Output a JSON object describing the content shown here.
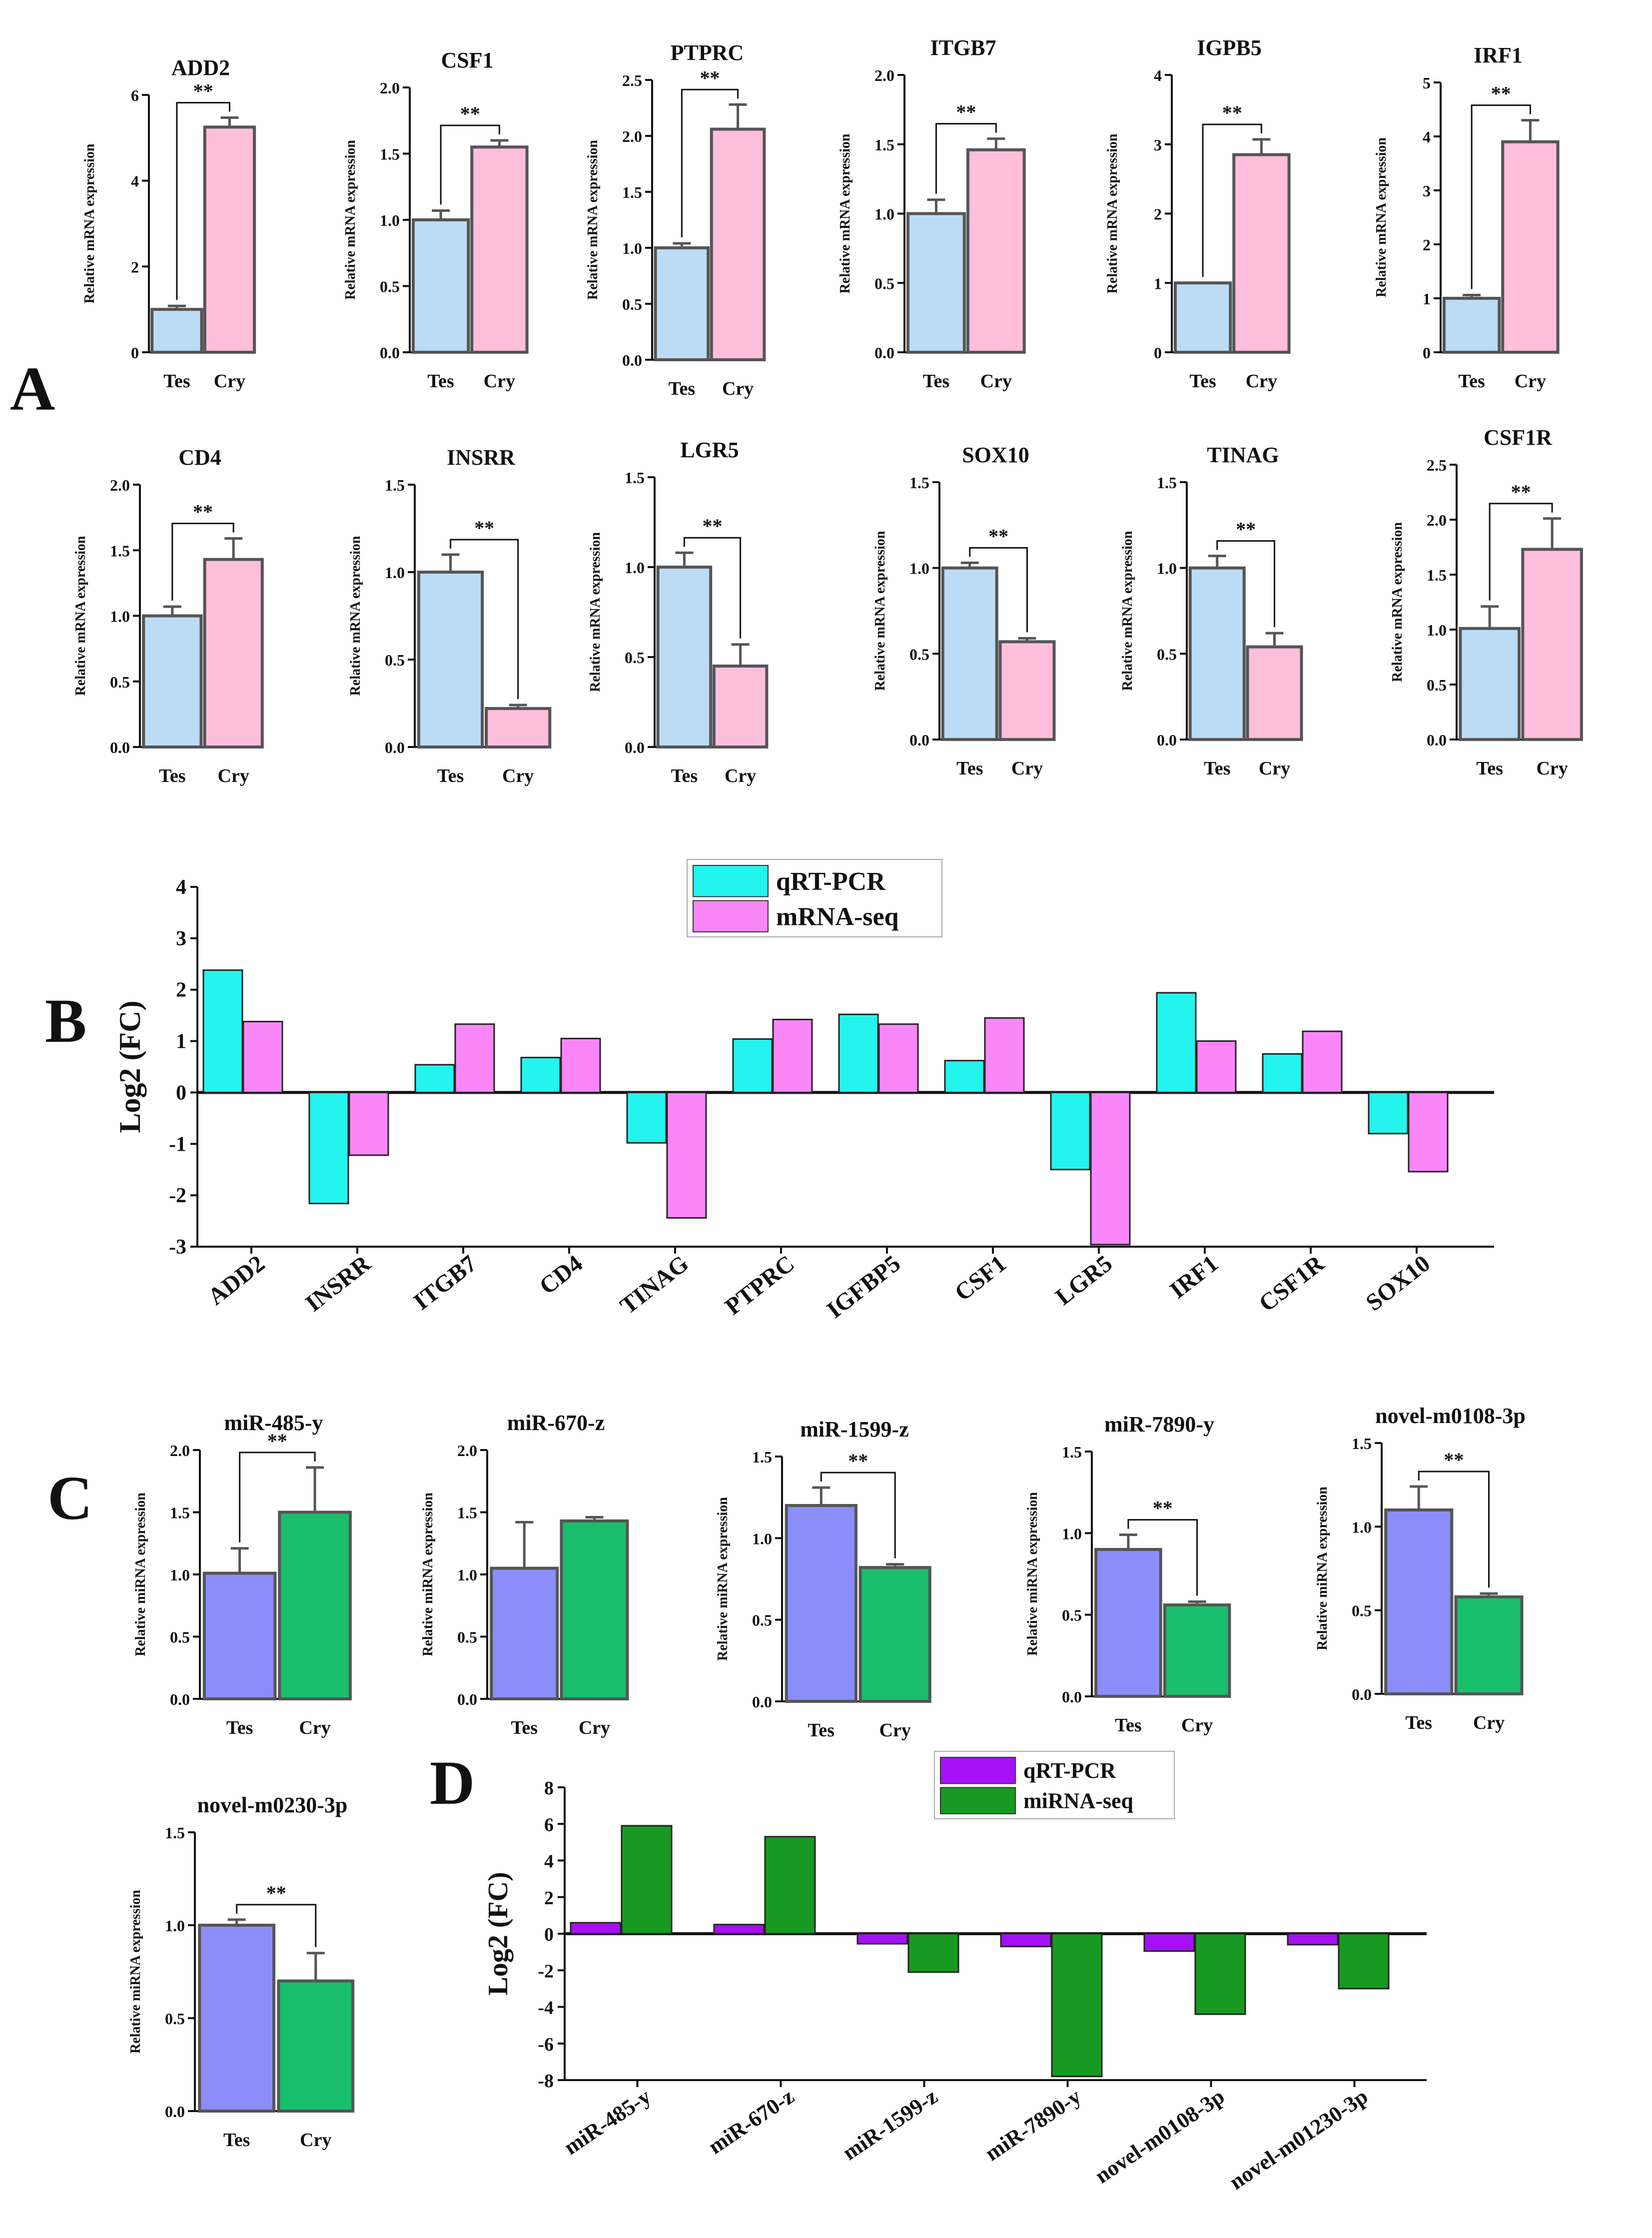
{
  "figure": {
    "panel_labels": [
      "A",
      "B",
      "C",
      "D"
    ],
    "sig_marker": "**"
  },
  "colors": {
    "tes_mrna": "#bcdcf6",
    "cry_mrna": "#ffbedc",
    "tes_mirna": "#8b8efa",
    "cry_mirna": "#19bf6c",
    "b_qrt": "#24f4ee",
    "b_seq": "#fa87fa",
    "d_qrt": "#a610f6",
    "d_seq": "#179a21",
    "bar_border": "#555555",
    "axis": "#111111"
  },
  "chart_data": [
    {
      "type": "bar",
      "panel": "A",
      "title": "ADD2",
      "ylabel": "Relative mRNA expression",
      "categories": [
        "Tes",
        "Cry"
      ],
      "values": [
        1.0,
        5.25
      ],
      "errors": [
        0.08,
        0.22
      ],
      "ylim": [
        0,
        6
      ],
      "yticks": [
        0,
        2,
        4,
        6
      ],
      "significance": "**"
    },
    {
      "type": "bar",
      "panel": "A",
      "title": "CSF1",
      "ylabel": "Relative mRNA expression",
      "categories": [
        "Tes",
        "Cry"
      ],
      "values": [
        1.0,
        1.55
      ],
      "errors": [
        0.07,
        0.05
      ],
      "ylim": [
        0,
        2.0
      ],
      "yticks": [
        0.0,
        0.5,
        1.0,
        1.5,
        2.0
      ],
      "significance": "**"
    },
    {
      "type": "bar",
      "panel": "A",
      "title": "PTPRC",
      "ylabel": "Relative mRNA expression",
      "categories": [
        "Tes",
        "Cry"
      ],
      "values": [
        1.0,
        2.06
      ],
      "errors": [
        0.04,
        0.22
      ],
      "ylim": [
        0,
        2.5
      ],
      "yticks": [
        0.0,
        0.5,
        1.0,
        1.5,
        2.0,
        2.5
      ],
      "significance": "**"
    },
    {
      "type": "bar",
      "panel": "A",
      "title": "ITGB7",
      "ylabel": "Relative mRNA expression",
      "categories": [
        "Tes",
        "Cry"
      ],
      "values": [
        1.0,
        1.46
      ],
      "errors": [
        0.1,
        0.08
      ],
      "ylim": [
        0,
        2.0
      ],
      "yticks": [
        0.0,
        0.5,
        1.0,
        1.5,
        2.0
      ],
      "significance": "**"
    },
    {
      "type": "bar",
      "panel": "A",
      "title": "IGPB5",
      "ylabel": "Relative mRNA expression",
      "categories": [
        "Tes",
        "Cry"
      ],
      "values": [
        1.0,
        2.85
      ],
      "errors": [
        0.0,
        0.22
      ],
      "ylim": [
        0,
        4
      ],
      "yticks": [
        0,
        1,
        2,
        3,
        4
      ],
      "significance": "**"
    },
    {
      "type": "bar",
      "panel": "A",
      "title": "IRF1",
      "ylabel": "Relative mRNA expression",
      "categories": [
        "Tes",
        "Cry"
      ],
      "values": [
        1.0,
        3.9
      ],
      "errors": [
        0.06,
        0.4
      ],
      "ylim": [
        0,
        5
      ],
      "yticks": [
        0,
        1,
        2,
        3,
        4,
        5
      ],
      "significance": "**"
    },
    {
      "type": "bar",
      "panel": "A",
      "title": "CD4",
      "ylabel": "Relative mRNA expression",
      "categories": [
        "Tes",
        "Cry"
      ],
      "values": [
        1.0,
        1.43
      ],
      "errors": [
        0.07,
        0.16
      ],
      "ylim": [
        0,
        2.0
      ],
      "yticks": [
        0.0,
        0.5,
        1.0,
        1.5,
        2.0
      ],
      "significance": "**"
    },
    {
      "type": "bar",
      "panel": "A",
      "title": "INSRR",
      "ylabel": "Relative mRNA expression",
      "categories": [
        "Tes",
        "Cry"
      ],
      "values": [
        1.0,
        0.22
      ],
      "errors": [
        0.1,
        0.02
      ],
      "ylim": [
        0,
        1.5
      ],
      "yticks": [
        0.0,
        0.5,
        1.0,
        1.5
      ],
      "significance": "**"
    },
    {
      "type": "bar",
      "panel": "A",
      "title": "LGR5",
      "ylabel": "Relative mRNA expression",
      "categories": [
        "Tes",
        "Cry"
      ],
      "values": [
        1.0,
        0.45
      ],
      "errors": [
        0.08,
        0.12
      ],
      "ylim": [
        0,
        1.5
      ],
      "yticks": [
        0.0,
        0.5,
        1.0,
        1.5
      ],
      "significance": "**"
    },
    {
      "type": "bar",
      "panel": "A",
      "title": "SOX10",
      "ylabel": "Relative mRNA expression",
      "categories": [
        "Tes",
        "Cry"
      ],
      "values": [
        1.0,
        0.57
      ],
      "errors": [
        0.03,
        0.02
      ],
      "ylim": [
        0,
        1.5
      ],
      "yticks": [
        0.0,
        0.5,
        1.0,
        1.5
      ],
      "significance": "**"
    },
    {
      "type": "bar",
      "panel": "A",
      "title": "TINAG",
      "ylabel": "Relative mRNA expression",
      "categories": [
        "Tes",
        "Cry"
      ],
      "values": [
        1.0,
        0.54
      ],
      "errors": [
        0.07,
        0.08
      ],
      "ylim": [
        0,
        1.5
      ],
      "yticks": [
        0.0,
        0.5,
        1.0,
        1.5
      ],
      "significance": "**"
    },
    {
      "type": "bar",
      "panel": "A",
      "title": "CSF1R",
      "ylabel": "Relative mRNA expression",
      "categories": [
        "Tes",
        "Cry"
      ],
      "values": [
        1.01,
        1.73
      ],
      "errors": [
        0.2,
        0.28
      ],
      "ylim": [
        0,
        2.5
      ],
      "yticks": [
        0.0,
        0.5,
        1.0,
        1.5,
        2.0,
        2.5
      ],
      "significance": "**"
    },
    {
      "type": "bar",
      "panel": "B",
      "ylabel": "Log2 (FC)",
      "categories": [
        "ADD2",
        "INSRR",
        "ITGB7",
        "CD4",
        "TINAG",
        "PTPRC",
        "IGFBP5",
        "CSF1",
        "LGR5",
        "IRF1",
        "CSF1R",
        "SOX10"
      ],
      "series": [
        {
          "name": "qRT-PCR",
          "values": [
            2.38,
            -2.16,
            0.54,
            0.68,
            -0.98,
            1.04,
            1.52,
            0.62,
            -1.5,
            1.94,
            0.75,
            -0.8
          ]
        },
        {
          "name": "mRNA-seq",
          "values": [
            1.38,
            -1.22,
            1.33,
            1.05,
            -2.44,
            1.42,
            1.33,
            1.45,
            -2.96,
            1.0,
            1.19,
            -1.54
          ]
        }
      ],
      "ylim": [
        -3,
        4
      ],
      "yticks": [
        -3,
        -2,
        -1,
        0,
        1,
        2,
        3,
        4
      ]
    },
    {
      "type": "bar",
      "panel": "C",
      "title": "miR-485-y",
      "ylabel": "Relative miRNA expression",
      "categories": [
        "Tes",
        "Cry"
      ],
      "values": [
        1.01,
        1.5
      ],
      "errors": [
        0.2,
        0.36
      ],
      "ylim": [
        0,
        2.0
      ],
      "yticks": [
        0.0,
        0.5,
        1.0,
        1.5,
        2.0
      ],
      "significance": "**"
    },
    {
      "type": "bar",
      "panel": "C",
      "title": "miR-670-z",
      "ylabel": "Relative miRNA expression",
      "categories": [
        "Tes",
        "Cry"
      ],
      "values": [
        1.05,
        1.43
      ],
      "errors": [
        0.37,
        0.03
      ],
      "ylim": [
        0,
        2.0
      ],
      "yticks": [
        0.0,
        0.5,
        1.0,
        1.5,
        2.0
      ],
      "significance": ""
    },
    {
      "type": "bar",
      "panel": "C",
      "title": "miR-1599-z",
      "ylabel": "Relative miRNA expression",
      "categories": [
        "Tes",
        "Cry"
      ],
      "values": [
        1.2,
        0.82
      ],
      "errors": [
        0.11,
        0.02
      ],
      "ylim": [
        0,
        1.5
      ],
      "yticks": [
        0.0,
        0.5,
        1.0,
        1.5
      ],
      "significance": "**"
    },
    {
      "type": "bar",
      "panel": "C",
      "title": "miR-7890-y",
      "ylabel": "Relative miRNA expression",
      "categories": [
        "Tes",
        "Cry"
      ],
      "values": [
        0.9,
        0.56
      ],
      "errors": [
        0.09,
        0.02
      ],
      "ylim": [
        0,
        1.5
      ],
      "yticks": [
        0.0,
        0.5,
        1.0,
        1.5
      ],
      "significance": "**"
    },
    {
      "type": "bar",
      "panel": "C",
      "title": "novel-m0108-3p",
      "ylabel": "Relative miRNA expression",
      "categories": [
        "Tes",
        "Cry"
      ],
      "values": [
        1.1,
        0.58
      ],
      "errors": [
        0.14,
        0.02
      ],
      "ylim": [
        0,
        1.5
      ],
      "yticks": [
        0.0,
        0.5,
        1.0,
        1.5
      ],
      "significance": "**"
    },
    {
      "type": "bar",
      "panel": "C",
      "title": "novel-m0230-3p",
      "ylabel": "Relative miRNA expression",
      "categories": [
        "Tes",
        "Cry"
      ],
      "values": [
        1.0,
        0.7
      ],
      "errors": [
        0.03,
        0.15
      ],
      "ylim": [
        0,
        1.5
      ],
      "yticks": [
        0.0,
        0.5,
        1.0,
        1.5
      ],
      "significance": "**"
    },
    {
      "type": "bar",
      "panel": "D",
      "ylabel": "Log2 (FC)",
      "categories": [
        "miR-485-y",
        "miR-670-z",
        "miR-1599-z",
        "miR-7890-y",
        "novel-m0108-3p",
        "novel-m01230-3p"
      ],
      "series": [
        {
          "name": "qRT-PCR",
          "values": [
            0.6,
            0.5,
            -0.55,
            -0.7,
            -0.95,
            -0.6
          ]
        },
        {
          "name": "miRNA-seq",
          "values": [
            5.9,
            5.3,
            -2.1,
            -7.8,
            -4.4,
            -3.0
          ]
        }
      ],
      "ylim": [
        -8,
        8
      ],
      "yticks": [
        -8,
        -6,
        -4,
        -2,
        0,
        2,
        4,
        6,
        8
      ]
    }
  ]
}
